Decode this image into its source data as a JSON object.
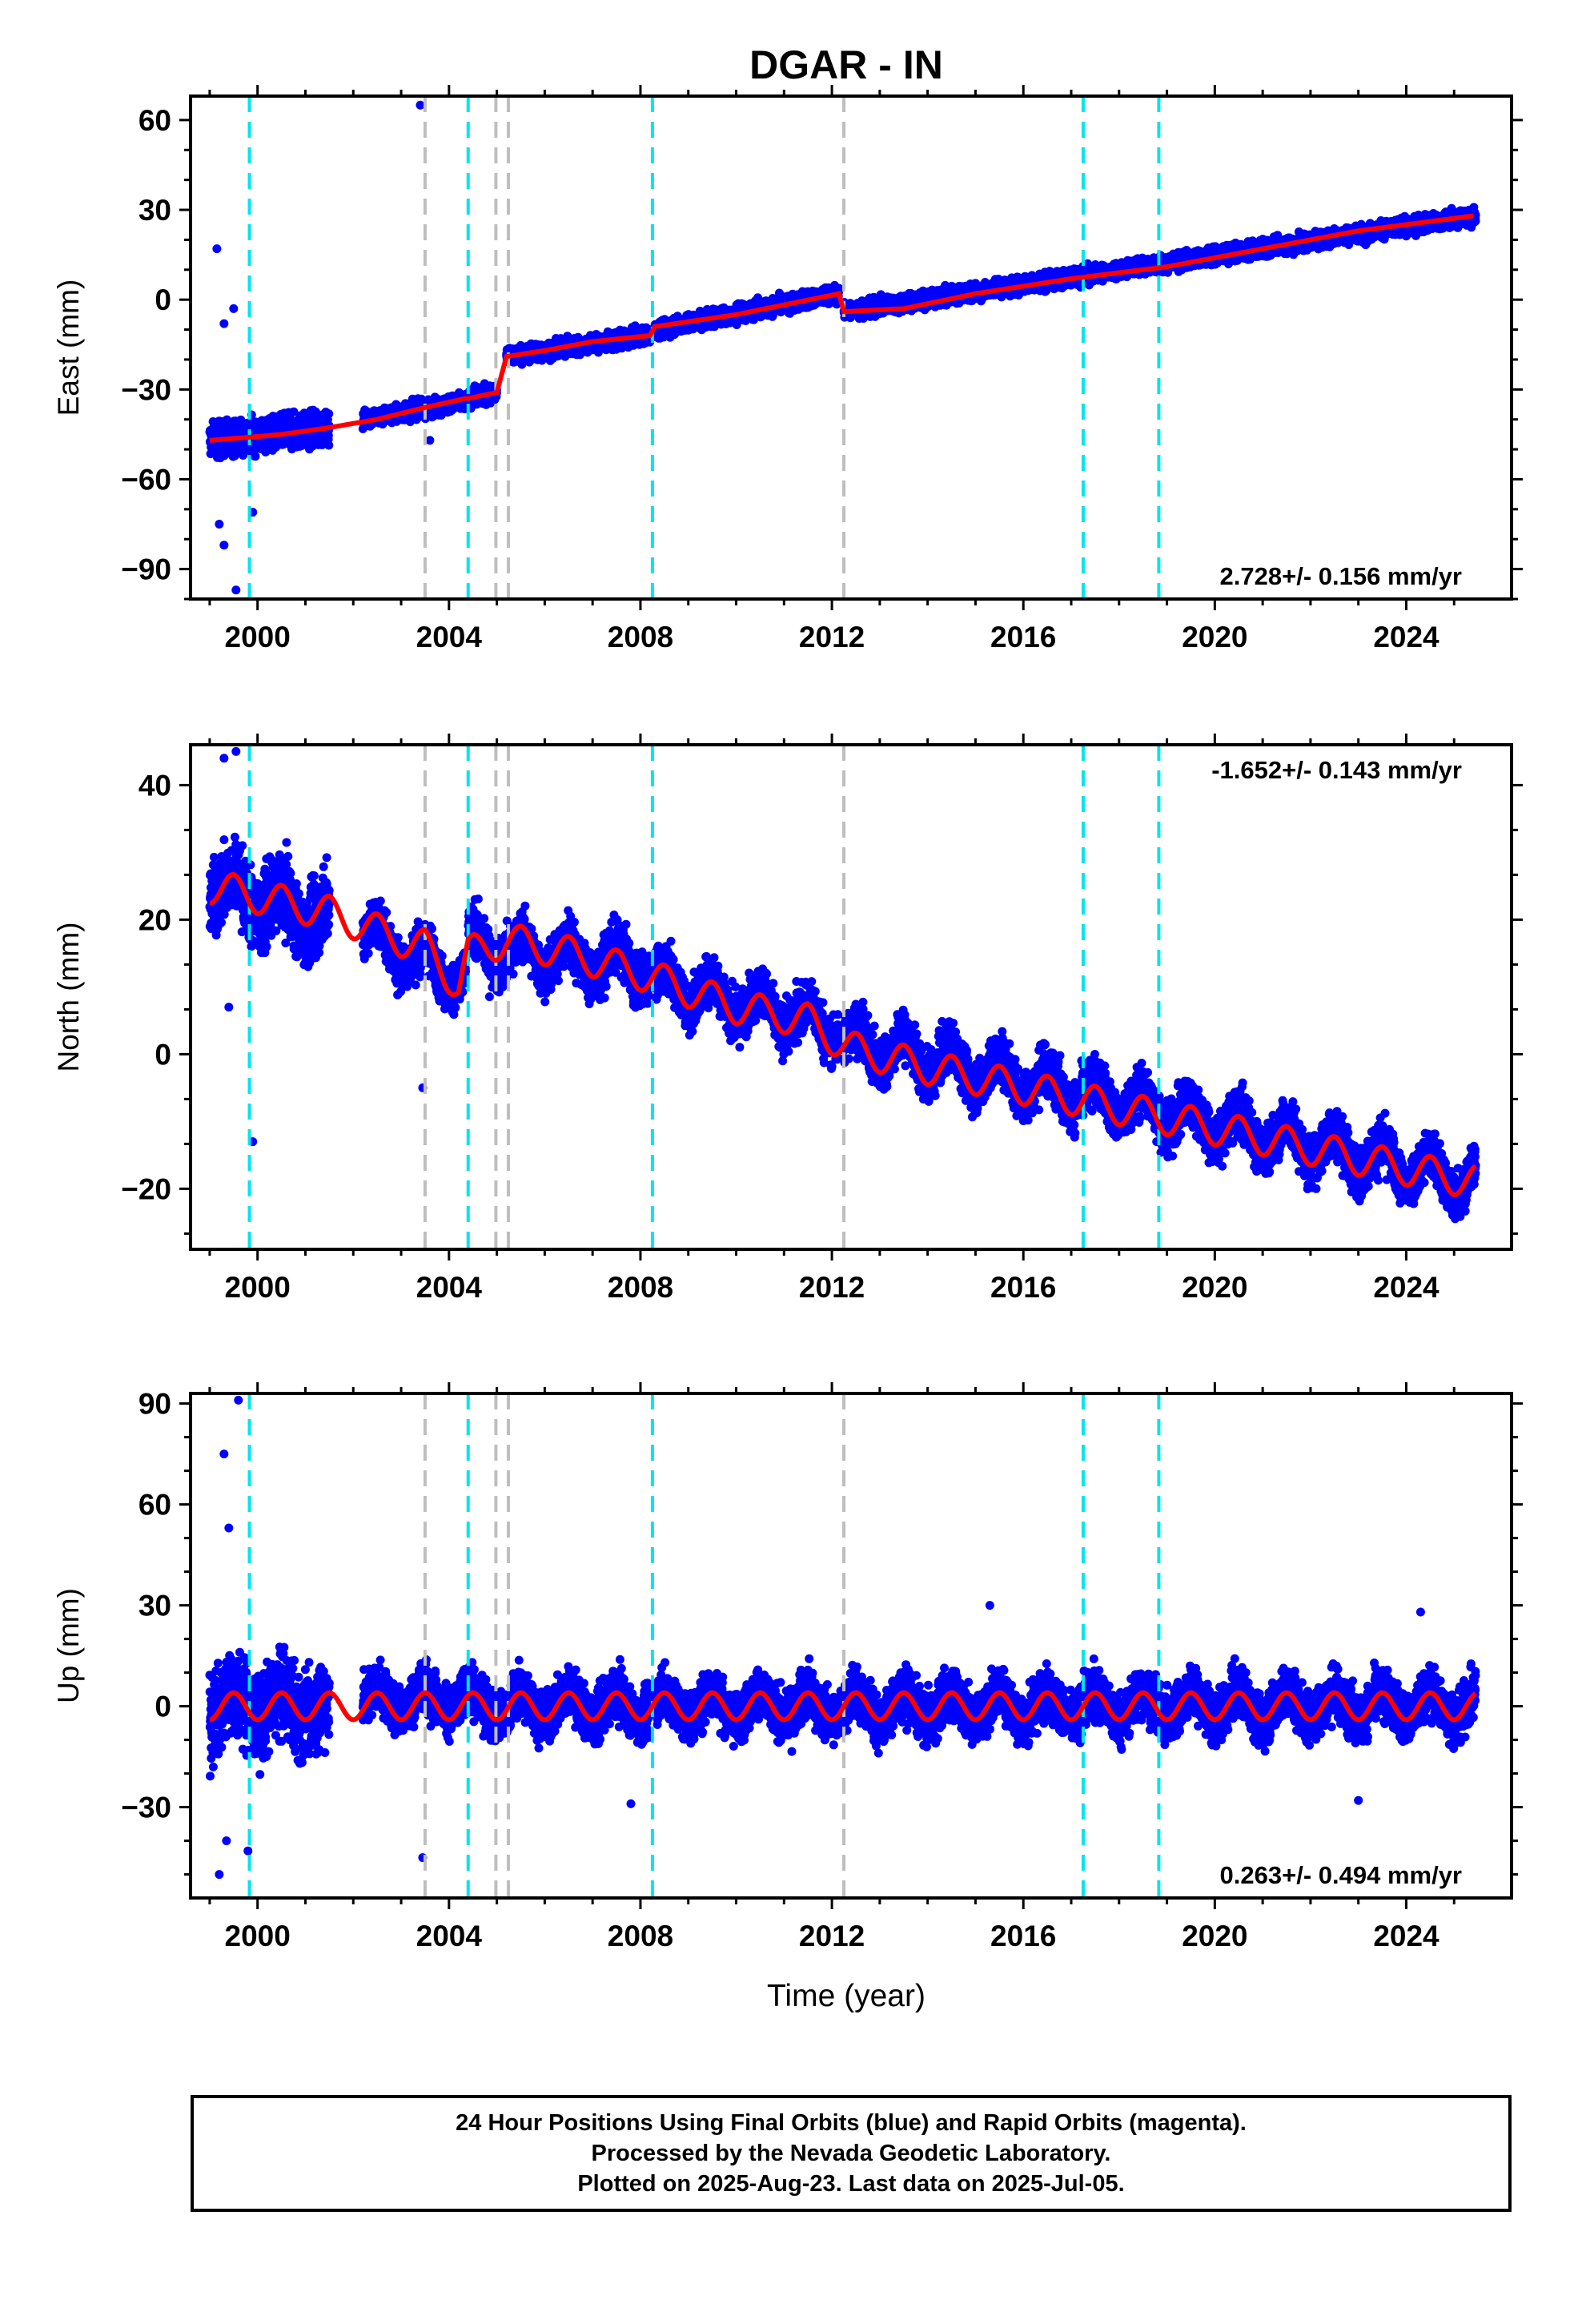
{
  "title": "DGAR - IN",
  "footer": {
    "line1": "24 Hour Positions Using Final Orbits (blue) and Rapid Orbits (magenta).",
    "line2": "Processed by the Nevada Geodetic Laboratory.",
    "line3": "Plotted on 2025-Aug-23. Last data on 2025-Jul-05."
  },
  "colors": {
    "final_orbits": "#0000ff",
    "model_fit": "#ff0000",
    "equipment_change": "#00e5ee",
    "earthquake": "#bebebe"
  },
  "chart_data": [
    {
      "type": "scatter",
      "component": "East",
      "ylabel": "East (mm)",
      "xlabel": "",
      "xlim": [
        1998.6,
        2026.2
      ],
      "ylim": [
        -100,
        68
      ],
      "xticks": [
        2000,
        2004,
        2008,
        2012,
        2016,
        2020,
        2024
      ],
      "yticks": [
        -90,
        -60,
        -30,
        0,
        30,
        60
      ],
      "rate_label": "2.728+/- 0.156 mm/yr",
      "rate_position": "bottom-right",
      "fit": {
        "x": [
          1999.0,
          1999.8,
          2000.5,
          2001.4,
          2002.5,
          2003.5,
          2004.35,
          2004.4,
          2005.0,
          2005.2,
          2006.0,
          2007.0,
          2008.2,
          2008.3,
          2010.0,
          2012.15,
          2012.25,
          2013.5,
          2015.0,
          2017.0,
          2019.0,
          2021.0,
          2023.0,
          2025.4
        ],
        "y": [
          -47,
          -46,
          -45,
          -43,
          -40,
          -36,
          -33,
          -33,
          -31,
          -19,
          -17,
          -14,
          -12,
          -9,
          -5,
          2,
          -4,
          -3,
          2,
          7,
          11,
          17,
          23,
          28
        ]
      },
      "scatter_segments": [
        {
          "x0": 1999.0,
          "x1": 2001.5,
          "y0": -47,
          "y1": -43,
          "spread": 6
        },
        {
          "x0": 2002.2,
          "x1": 2004.35,
          "y0": -40,
          "y1": -34,
          "spread": 3
        },
        {
          "x0": 2004.4,
          "x1": 2005.0,
          "y0": -33,
          "y1": -31,
          "spread": 3
        },
        {
          "x0": 2005.2,
          "x1": 2008.2,
          "y0": -19,
          "y1": -12,
          "spread": 3
        },
        {
          "x0": 2008.3,
          "x1": 2012.15,
          "y0": -10,
          "y1": 2,
          "spread": 3
        },
        {
          "x0": 2012.25,
          "x1": 2025.45,
          "y0": -4,
          "y1": 28,
          "spread": 3
        }
      ],
      "outliers": [
        [
          1999.15,
          17
        ],
        [
          1999.3,
          -8
        ],
        [
          1999.5,
          -3
        ],
        [
          1999.2,
          -75
        ],
        [
          1999.3,
          -82
        ],
        [
          1999.55,
          -97
        ],
        [
          1999.9,
          -71
        ],
        [
          2003.4,
          65
        ],
        [
          2003.6,
          -47
        ]
      ],
      "markers": {
        "equipment_change": [
          1999.83,
          2004.4,
          2008.25,
          2017.25,
          2018.83
        ],
        "earthquake": [
          2003.5,
          2004.98,
          2005.24,
          2012.25
        ]
      }
    },
    {
      "type": "scatter",
      "component": "North",
      "ylabel": "North (mm)",
      "xlabel": "",
      "xlim": [
        1998.6,
        2026.2
      ],
      "ylim": [
        -29,
        46
      ],
      "xticks": [
        2000,
        2004,
        2008,
        2012,
        2016,
        2020,
        2024
      ],
      "yticks": [
        -20,
        0,
        20,
        40
      ],
      "rate_label": "-1.652+/- 0.143 mm/yr",
      "rate_position": "top-right",
      "fit": {
        "x": [
          1999.0,
          2001.5,
          2003.0,
          2003.5,
          2004.2,
          2004.4,
          2005.2,
          2006.5,
          2008.0,
          2010.0,
          2011.5,
          2012.3,
          2014.0,
          2016.0,
          2018.0,
          2020.0,
          2022.0,
          2024.0,
          2025.45
        ],
        "y": [
          25,
          21,
          17,
          16,
          10,
          15,
          17,
          15,
          12,
          7,
          5,
          1,
          -2,
          -5,
          -8,
          -11,
          -14,
          -17,
          -19
        ],
        "seasonal_amplitude": 2.5
      },
      "scatter_segments": [
        {
          "x0": 1999.0,
          "x1": 2001.5,
          "y0": 25,
          "y1": 20,
          "spread": 6
        },
        {
          "x0": 2002.2,
          "x1": 2004.35,
          "y0": 18,
          "y1": 11,
          "spread": 4
        },
        {
          "x0": 2004.4,
          "x1": 2008.2,
          "y0": 16,
          "y1": 13,
          "spread": 4
        },
        {
          "x0": 2008.3,
          "x1": 2012.15,
          "y0": 11,
          "y1": 4,
          "spread": 4
        },
        {
          "x0": 2012.25,
          "x1": 2025.45,
          "y0": 2,
          "y1": -19,
          "spread": 4
        }
      ],
      "outliers": [
        [
          1999.3,
          44
        ],
        [
          1999.55,
          45
        ],
        [
          1999.4,
          7
        ],
        [
          1999.9,
          -13
        ],
        [
          2003.45,
          -5
        ]
      ],
      "markers": {
        "equipment_change": [
          1999.83,
          2004.4,
          2008.25,
          2017.25,
          2018.83
        ],
        "earthquake": [
          2003.5,
          2004.98,
          2005.24,
          2012.25
        ]
      }
    },
    {
      "type": "scatter",
      "component": "Up",
      "ylabel": "Up (mm)",
      "xlabel": "Time (year)",
      "xlim": [
        1998.6,
        2026.2
      ],
      "ylim": [
        -57,
        93
      ],
      "xticks": [
        2000,
        2004,
        2008,
        2012,
        2016,
        2020,
        2024
      ],
      "yticks": [
        -30,
        0,
        30,
        60,
        90
      ],
      "rate_label": "0.263+/- 0.494 mm/yr",
      "rate_position": "bottom-right",
      "fit": {
        "x": [
          1999.0,
          2025.45
        ],
        "y": [
          0,
          0
        ],
        "seasonal_amplitude": 4
      },
      "scatter_segments": [
        {
          "x0": 1999.0,
          "x1": 2001.5,
          "y0": 0,
          "y1": 0,
          "spread": 14
        },
        {
          "x0": 2002.2,
          "x1": 2004.35,
          "y0": 2,
          "y1": 2,
          "spread": 8
        },
        {
          "x0": 2004.4,
          "x1": 2008.2,
          "y0": 0,
          "y1": 0,
          "spread": 8
        },
        {
          "x0": 2008.3,
          "x1": 2025.45,
          "y0": 0,
          "y1": 0,
          "spread": 8
        }
      ],
      "outliers": [
        [
          1999.6,
          91
        ],
        [
          1999.3,
          75
        ],
        [
          1999.4,
          53
        ],
        [
          1999.2,
          -50
        ],
        [
          1999.35,
          -40
        ],
        [
          1999.8,
          -43
        ],
        [
          2003.45,
          -45
        ],
        [
          2007.8,
          -29
        ],
        [
          2015.3,
          30
        ],
        [
          2023.0,
          -28
        ],
        [
          2024.3,
          28
        ]
      ],
      "markers": {
        "equipment_change": [
          1999.83,
          2004.4,
          2008.25,
          2017.25,
          2018.83
        ],
        "earthquake": [
          2003.5,
          2004.98,
          2005.24,
          2012.25
        ]
      }
    }
  ]
}
